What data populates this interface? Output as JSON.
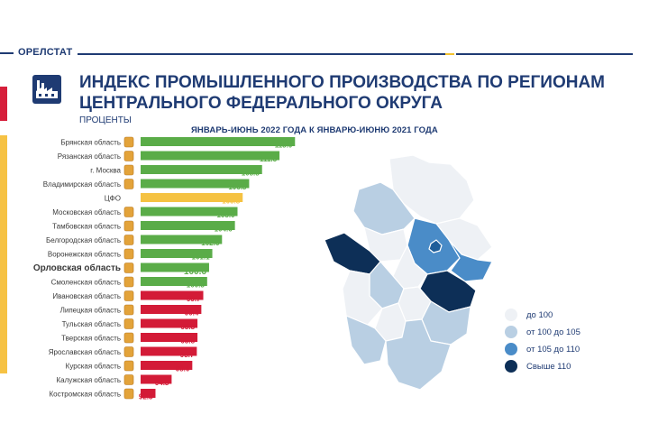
{
  "header": {
    "org": "ОРЕЛСТАТ",
    "title_line1": "ИНДЕКС ПРОМЫШЛЕННОГО ПРОИЗВОДСТВА ПО РЕГИОНАМ",
    "title_line2": "ЦЕНТРАЛЬНОГО ФЕДЕРАЛЬНОГО ОКРУГА",
    "subtitle": "ПРОЦЕНТЫ",
    "period": "ЯНВАРЬ-ИЮНЬ 2022 ГОДА К ЯНВАРЮ-ИЮНЮ 2021 ГОДА"
  },
  "colors": {
    "above_100": "#5aac48",
    "cfo": "#f5c242",
    "below_100": "#d31b37",
    "title": "#1f3b73",
    "map_lt100": "#eef1f5",
    "map_100_105": "#b9cfe3",
    "map_105_110": "#4a8cc8",
    "map_gt110": "#0d2f57"
  },
  "chart_data": {
    "type": "bar",
    "orientation": "horizontal",
    "title": "ИНДЕКС ПРОМЫШЛЕННОГО ПРОИЗВОДСТВА ПО РЕГИОНАМ ЦЕНТРАЛЬНОГО ФЕДЕРАЛЬНОГО ОКРУГА",
    "unit": "ПРОЦЕНТЫ",
    "highlight": "Орловская область",
    "categories": [
      "Брянская область",
      "Рязанская область",
      "г. Москва",
      "Владимирская область",
      "ЦФО",
      "Московская область",
      "Тамбовская область",
      "Белгородская область",
      "Воронежская область",
      "Орловская область",
      "Смоленская область",
      "Ивановская область",
      "Липецкая область",
      "Тульская область",
      "Тверская область",
      "Ярославская область",
      "Курская область",
      "Калужская область",
      "Костромская область"
    ],
    "values": [
      113.9,
      111.5,
      108.8,
      106.8,
      105.8,
      105.0,
      104.6,
      102.6,
      101.1,
      100.6,
      100.3,
      99.7,
      99.4,
      98.8,
      98.8,
      98.7,
      98.0,
      94.8,
      92.3
    ],
    "labels": [
      "113.9",
      "111.5",
      "108.8",
      "106.8",
      "105.8",
      "105.0",
      "104.6",
      "102.6",
      "101.1",
      "100.6",
      "100.3",
      "99.7",
      "99.4",
      "98.8",
      "98.8",
      "98.7",
      "98.0",
      "94.8",
      "92.3"
    ],
    "xlim": [
      90,
      114
    ]
  },
  "legend": {
    "items": [
      {
        "label": "до 100",
        "color": "#eef1f5"
      },
      {
        "label": "от 100 до 105",
        "color": "#b9cfe3"
      },
      {
        "label": "от 105 до 110",
        "color": "#4a8cc8"
      },
      {
        "label": "Свыше 110",
        "color": "#0d2f57"
      }
    ]
  }
}
